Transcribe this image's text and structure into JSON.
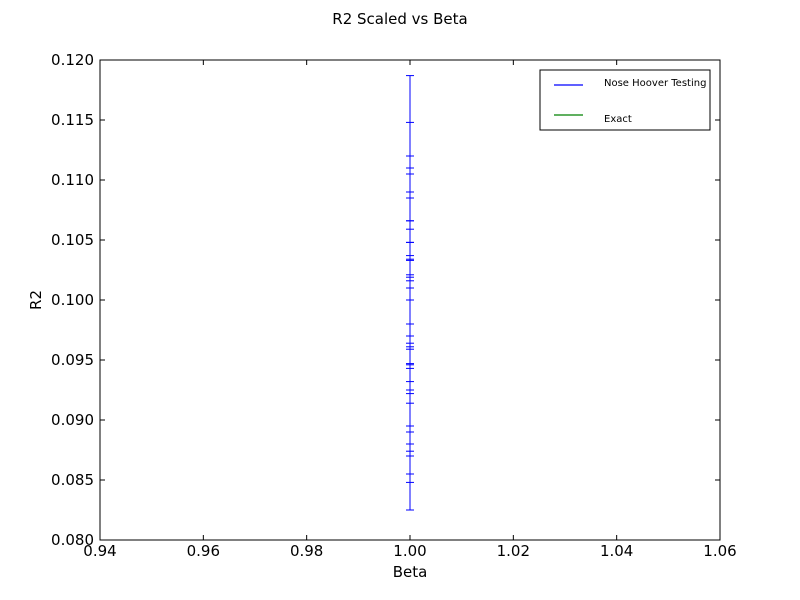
{
  "chart_data": {
    "type": "scatter",
    "title": "R2 Scaled vs Beta",
    "xlabel": "Beta",
    "ylabel": "R2",
    "xlim": [
      0.94,
      1.06
    ],
    "ylim": [
      0.08,
      0.12
    ],
    "xticks": [
      "0.94",
      "0.96",
      "0.98",
      "1.00",
      "1.02",
      "1.04",
      "1.06"
    ],
    "yticks": [
      "0.080",
      "0.085",
      "0.090",
      "0.095",
      "0.100",
      "0.105",
      "0.110",
      "0.115",
      "0.120"
    ],
    "grid": false,
    "legend_position": "top-right",
    "series": [
      {
        "name": "Nose Hoover Testing",
        "color": "#0000ff",
        "style": "errorbar",
        "points": [
          {
            "x": 1.0,
            "y": 0.1006,
            "yerr_low": 0.0181,
            "yerr_high": 0.0181
          },
          {
            "x": 1.0,
            "y": 0.0998,
            "yerr_low": 0.015,
            "yerr_high": 0.015
          },
          {
            "x": 1.0,
            "y": 0.0997,
            "yerr_low": 0.0123,
            "yerr_high": 0.0123
          },
          {
            "x": 1.0,
            "y": 0.0995,
            "yerr_low": 0.0115,
            "yerr_high": 0.0115
          },
          {
            "x": 1.0,
            "y": 0.098,
            "yerr_low": 0.0125,
            "yerr_high": 0.0125
          },
          {
            "x": 1.0,
            "y": 0.099,
            "yerr_low": 0.01,
            "yerr_high": 0.01
          },
          {
            "x": 1.0,
            "y": 0.099,
            "yerr_low": 0.0095,
            "yerr_high": 0.0095
          },
          {
            "x": 1.0,
            "y": 0.0968,
            "yerr_low": 0.0098,
            "yerr_high": 0.0098
          },
          {
            "x": 1.0,
            "y": 0.099,
            "yerr_low": 0.0076,
            "yerr_high": 0.0076
          },
          {
            "x": 1.0,
            "y": 0.0992,
            "yerr_low": 0.0067,
            "yerr_high": 0.0067
          },
          {
            "x": 1.0,
            "y": 0.0985,
            "yerr_low": 0.0063,
            "yerr_high": 0.0063
          },
          {
            "x": 1.0,
            "y": 0.099,
            "yerr_low": 0.0058,
            "yerr_high": 0.0058
          },
          {
            "x": 1.0,
            "y": 0.099,
            "yerr_low": 0.0047,
            "yerr_high": 0.0047
          },
          {
            "x": 1.0,
            "y": 0.099,
            "yerr_low": 0.0044,
            "yerr_high": 0.0044
          },
          {
            "x": 1.0,
            "y": 0.099,
            "yerr_low": 0.0043,
            "yerr_high": 0.0043
          },
          {
            "x": 1.0,
            "y": 0.099,
            "yerr_low": 0.0031,
            "yerr_high": 0.0031
          },
          {
            "x": 1.0,
            "y": 0.099,
            "yerr_low": 0.0029,
            "yerr_high": 0.0029
          },
          {
            "x": 1.0,
            "y": 0.099,
            "yerr_low": 0.0026,
            "yerr_high": 0.0026
          },
          {
            "x": 1.0,
            "y": 0.099,
            "yerr_low": 0.002,
            "yerr_high": 0.002
          },
          {
            "x": 1.0,
            "y": 0.099,
            "yerr_low": 0.001,
            "yerr_high": 0.001
          }
        ]
      },
      {
        "name": "Exact",
        "color": "#008000",
        "style": "line",
        "points": []
      }
    ]
  }
}
